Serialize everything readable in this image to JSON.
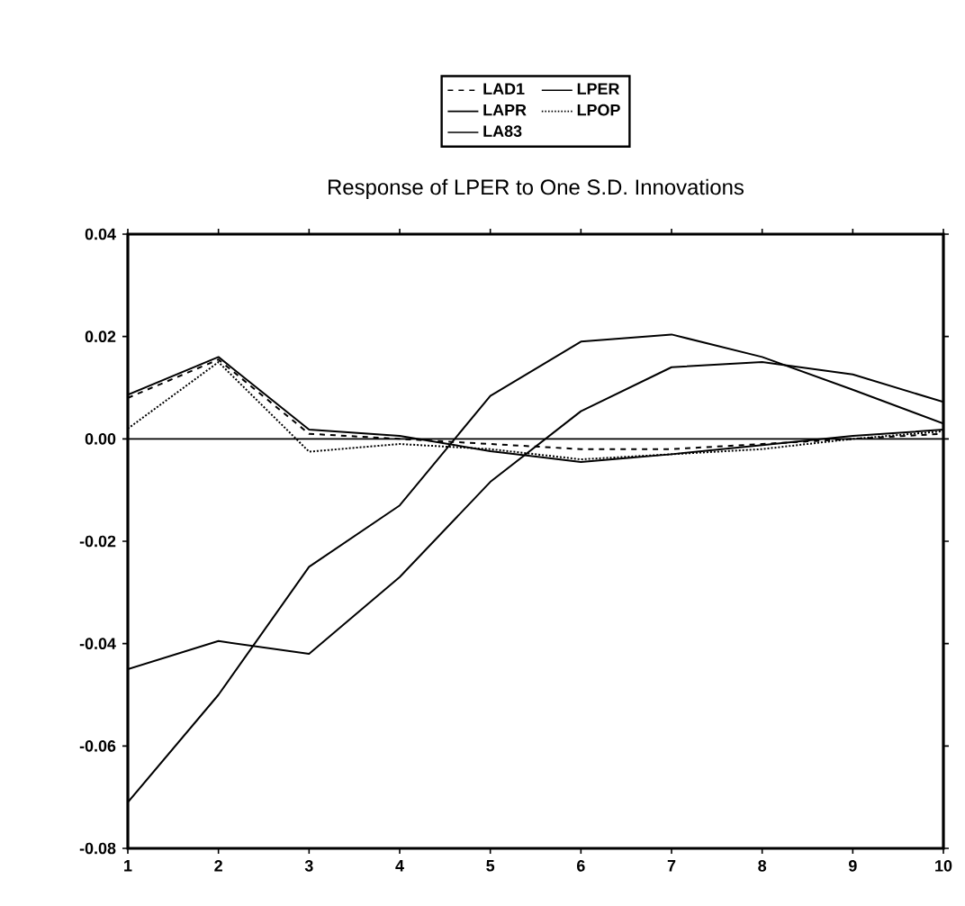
{
  "chart_data": {
    "type": "line",
    "title": "Response of LPER to One S.D. Innovations",
    "x": [
      1,
      2,
      3,
      4,
      5,
      6,
      7,
      8,
      9,
      10
    ],
    "series": [
      {
        "name": "LAD1",
        "color": "#000000",
        "line_style": "dashed",
        "values": [
          0.008,
          0.0155,
          0.001,
          0.0,
          -0.001,
          -0.002,
          -0.002,
          -0.001,
          0.0,
          0.001
        ]
      },
      {
        "name": "LPER",
        "color": "#000000",
        "line_style": "solid",
        "values": [
          0.0086,
          0.016,
          0.0018,
          0.0006,
          -0.0024,
          -0.0045,
          -0.003,
          -0.0012,
          0.0006,
          0.0018
        ]
      },
      {
        "name": "LAPR",
        "color": "#000000",
        "line_style": "solid",
        "values": [
          -0.071,
          -0.05,
          -0.025,
          -0.013,
          0.0084,
          0.019,
          0.0204,
          0.016,
          0.0096,
          0.003
        ]
      },
      {
        "name": "LPOP",
        "color": "#000000",
        "line_style": "dotted",
        "values": [
          0.002,
          0.015,
          -0.0025,
          -0.001,
          -0.002,
          -0.004,
          -0.003,
          -0.002,
          0.0,
          0.0015
        ]
      },
      {
        "name": "LA83",
        "color": "#000000",
        "line_style": "solid",
        "values": [
          -0.045,
          -0.0395,
          -0.042,
          -0.027,
          -0.0084,
          0.0054,
          0.014,
          0.015,
          0.0126,
          0.0072
        ]
      }
    ],
    "xlim": [
      1,
      10
    ],
    "xticks": [
      1,
      2,
      3,
      4,
      5,
      6,
      7,
      8,
      9,
      10
    ],
    "ylim": [
      -0.08,
      0.04
    ],
    "yticks": [
      {
        "value": -0.08,
        "label": "-0.08"
      },
      {
        "value": -0.06,
        "label": "-0.06"
      },
      {
        "value": -0.04,
        "label": "-0.04"
      },
      {
        "value": -0.02,
        "label": "-0.02"
      },
      {
        "value": 0,
        "label": "0.00"
      },
      {
        "value": 0.02,
        "label": "0.02"
      },
      {
        "value": 0.04,
        "label": "0.04"
      }
    ],
    "ref_lines": [
      {
        "axis": "y",
        "value": 0,
        "color": "#000000"
      }
    ],
    "grid": false,
    "legend": "top",
    "marker": "none"
  }
}
